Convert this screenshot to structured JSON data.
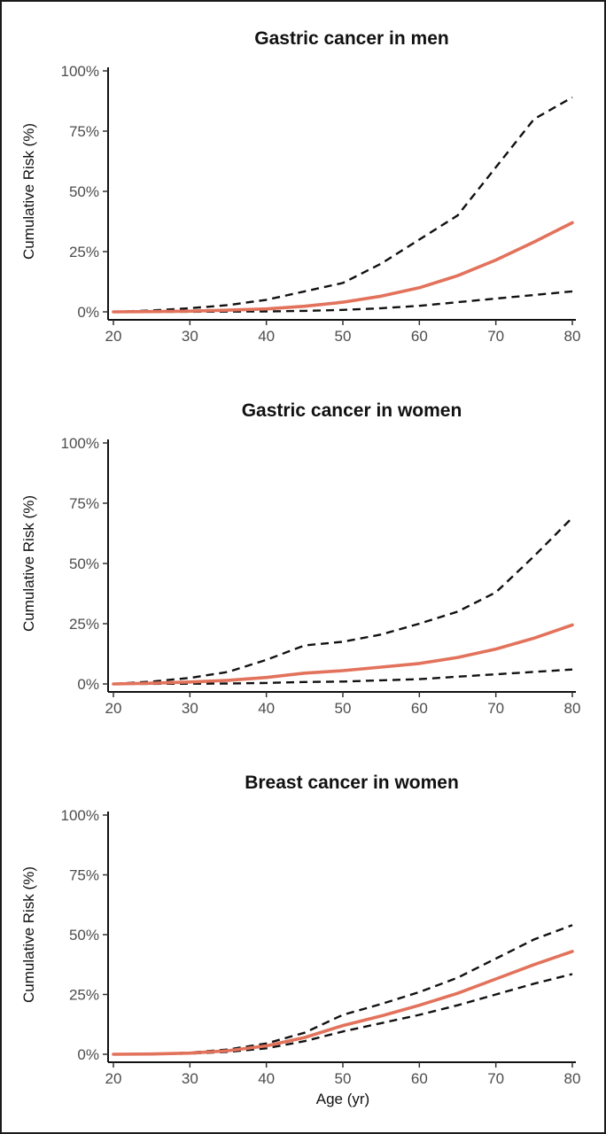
{
  "chart_data": [
    {
      "type": "line",
      "title": "Gastric cancer in men",
      "ylabel": "Cumulative Risk (%)",
      "xlabel": "",
      "x_ticks": [
        "20",
        "30",
        "40",
        "50",
        "60",
        "70",
        "80"
      ],
      "y_ticks": [
        "0%",
        "25%",
        "50%",
        "75%",
        "100%"
      ],
      "xlim": [
        20,
        80
      ],
      "ylim": [
        0,
        100
      ],
      "grid": false,
      "colors": {
        "estimate": "#e2725b",
        "interval": "#111111"
      },
      "x": [
        20,
        25,
        30,
        35,
        40,
        45,
        50,
        55,
        60,
        65,
        70,
        75,
        80
      ],
      "series": [
        {
          "values": [
            0,
            0.1,
            0.3,
            0.7,
            1.2,
            2.3,
            4,
            6.5,
            10,
            15,
            21.5,
            29,
            37
          ],
          "style": "solid"
        },
        {
          "values": [
            0,
            0.6,
            1.5,
            2.8,
            5,
            8.5,
            12,
            20,
            30,
            40,
            60,
            80,
            89
          ],
          "style": "dashed"
        },
        {
          "values": [
            0,
            0,
            0.05,
            0.1,
            0.2,
            0.4,
            0.8,
            1.5,
            2.5,
            4,
            5.5,
            7,
            8.5
          ],
          "style": "dashed"
        }
      ]
    },
    {
      "type": "line",
      "title": "Gastric cancer in women",
      "ylabel": "Cumulative Risk (%)",
      "xlabel": "",
      "x_ticks": [
        "20",
        "30",
        "40",
        "50",
        "60",
        "70",
        "80"
      ],
      "y_ticks": [
        "0%",
        "25%",
        "50%",
        "75%",
        "100%"
      ],
      "xlim": [
        20,
        80
      ],
      "ylim": [
        0,
        100
      ],
      "grid": false,
      "colors": {
        "estimate": "#e2725b",
        "interval": "#111111"
      },
      "x": [
        20,
        25,
        30,
        35,
        40,
        45,
        50,
        55,
        60,
        65,
        70,
        75,
        80
      ],
      "series": [
        {
          "values": [
            0,
            0.3,
            0.8,
            1.5,
            2.7,
            4.5,
            5.5,
            7,
            8.5,
            11,
            14.5,
            19,
            24.5
          ],
          "style": "solid"
        },
        {
          "values": [
            0,
            1,
            2.5,
            5,
            10,
            16,
            17.5,
            20.5,
            25,
            30,
            38,
            53,
            69
          ],
          "style": "dashed"
        },
        {
          "values": [
            0,
            0.05,
            0.1,
            0.2,
            0.4,
            0.8,
            1,
            1.5,
            2,
            3,
            4,
            5,
            6
          ],
          "style": "dashed"
        }
      ]
    },
    {
      "type": "line",
      "title": "Breast cancer in women",
      "ylabel": "Cumulative Risk (%)",
      "xlabel": "Age (yr)",
      "x_ticks": [
        "20",
        "30",
        "40",
        "50",
        "60",
        "70",
        "80"
      ],
      "y_ticks": [
        "0%",
        "25%",
        "50%",
        "75%",
        "100%"
      ],
      "xlim": [
        20,
        80
      ],
      "ylim": [
        0,
        100
      ],
      "grid": false,
      "colors": {
        "estimate": "#e2725b",
        "interval": "#111111"
      },
      "x": [
        20,
        25,
        30,
        35,
        40,
        45,
        50,
        55,
        60,
        65,
        70,
        75,
        80
      ],
      "series": [
        {
          "values": [
            0,
            0.1,
            0.5,
            1.5,
            3.5,
            7,
            12,
            16,
            20.5,
            25.5,
            31.5,
            37.5,
            43
          ],
          "style": "solid"
        },
        {
          "values": [
            0,
            0.2,
            0.7,
            2,
            4.5,
            9,
            16.5,
            21,
            26,
            32,
            40,
            48,
            54
          ],
          "style": "dashed"
        },
        {
          "values": [
            0,
            0.05,
            0.3,
            1,
            2.5,
            5.5,
            9.5,
            13,
            16.5,
            20.5,
            25,
            29.5,
            33.5
          ],
          "style": "dashed"
        }
      ]
    }
  ]
}
